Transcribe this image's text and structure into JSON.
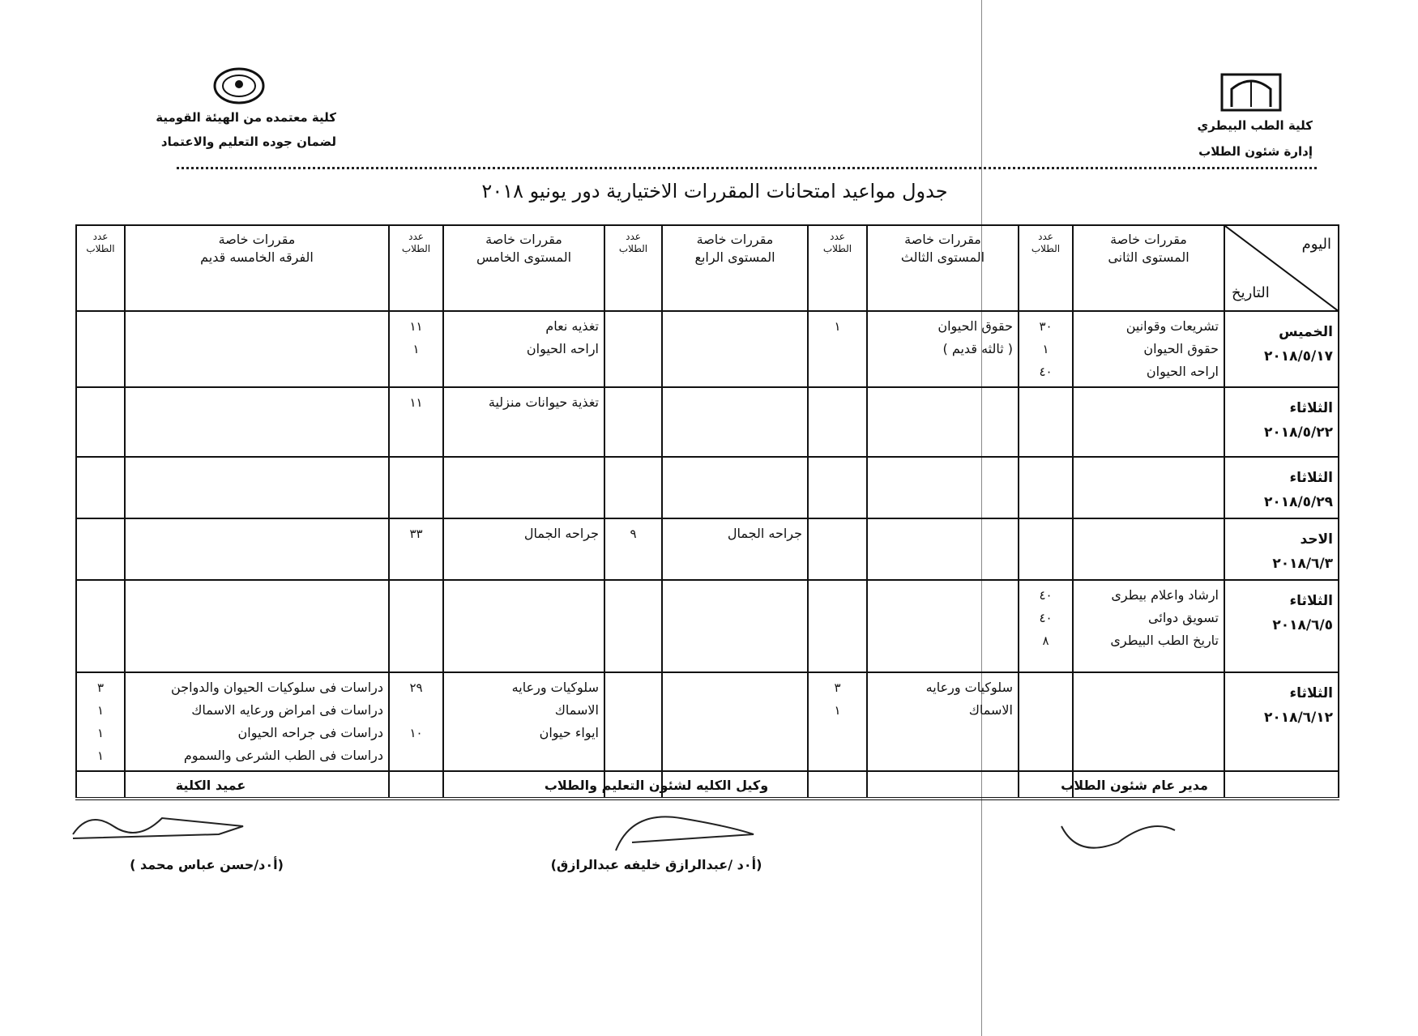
{
  "header": {
    "right_lines": [
      "كلية الطب البيطري",
      "إدارة شئون الطلاب"
    ],
    "left_lines": [
      "كلية معتمده من الهيئة القومية",
      "لضمان جوده التعليم والاعتماد"
    ]
  },
  "title": "جدول مواعيد امتحانات المقررات الاختيارية دور يونيو ٢٠١٨",
  "table": {
    "corner": {
      "day_label": "اليوم",
      "date_label": "التاريخ"
    },
    "columns": [
      [
        "مقررات خاصة",
        "المستوى الثانى"
      ],
      [
        "عدد",
        "الطلاب"
      ],
      [
        "مقررات خاصة",
        "المستوى الثالث"
      ],
      [
        "عدد",
        "الطلاب"
      ],
      [
        "مقررات خاصة",
        "المستوى الرابع"
      ],
      [
        "عدد",
        "الطلاب"
      ],
      [
        "مقررات خاصة",
        "المستوى الخامس"
      ],
      [
        "عدد",
        "الطلاب"
      ],
      [
        "مقررات خاصة",
        "الفرقه الخامسه قديم"
      ],
      [
        "عدد",
        "الطلاب"
      ]
    ],
    "rows": [
      {
        "day": "الخميس",
        "date": "٢٠١٨/٥/١٧",
        "cells": [
          [
            "تشريعات وقوانين",
            "حقوق الحيوان",
            "اراحه الحيوان"
          ],
          [
            "٣٠",
            "١",
            "٤٠"
          ],
          [
            "حقوق الحيوان",
            "( ثالثه قديم )"
          ],
          [
            "١"
          ],
          [],
          [],
          [
            "تغذيه نعام",
            "اراحه الحيوان"
          ],
          [
            "١١",
            "١"
          ],
          [],
          []
        ]
      },
      {
        "day": "الثلاثاء",
        "date": "٢٠١٨/٥/٢٢",
        "cells": [
          [],
          [],
          [],
          [],
          [],
          [],
          [
            "تغذية حيوانات منزلية"
          ],
          [
            "١١"
          ],
          [],
          []
        ]
      },
      {
        "day": "الثلاثاء",
        "date": "٢٠١٨/٥/٢٩",
        "cells": [
          [],
          [],
          [],
          [],
          [],
          [],
          [],
          [],
          [],
          []
        ]
      },
      {
        "day": "الاحد",
        "date": "٢٠١٨/٦/٣",
        "cells": [
          [],
          [],
          [],
          [],
          [
            "جراحه الجمال"
          ],
          [
            "٩"
          ],
          [
            "جراحه الجمال"
          ],
          [
            "٣٣"
          ],
          [],
          []
        ]
      },
      {
        "day": "الثلاثاء",
        "date": "٢٠١٨/٦/٥",
        "cells": [
          [
            "ارشاد واعلام بيطرى",
            "تسويق دوائى",
            "تاريخ الطب البيطرى"
          ],
          [
            "٤٠",
            "٤٠",
            "٨"
          ],
          [],
          [],
          [],
          [],
          [],
          [],
          [],
          []
        ]
      },
      {
        "day": "الثلاثاء",
        "date": "٢٠١٨/٦/١٢",
        "cells": [
          [],
          [],
          [
            "سلوكيات ورعايه",
            "الاسماك"
          ],
          [
            "٣",
            "١"
          ],
          [],
          [],
          [
            "سلوكيات ورعايه",
            "الاسماك",
            "ايواء حيوان"
          ],
          [
            "٢٩",
            null,
            "١٠"
          ],
          [
            "دراسات فى سلوكيات الحيوان والدواجن",
            "دراسات فى امراض ورعايه الاسماك",
            "دراسات فى جراحه الحيوان",
            "دراسات فى الطب الشرعى والسموم"
          ],
          [
            "٣",
            "١",
            "١",
            "١"
          ]
        ]
      }
    ]
  },
  "signatures": [
    {
      "title": "مدير عام شئون الطلاب"
    },
    {
      "title": "وكيل الكليه لشئون التعليم والطلاب",
      "name": "(أ٠د /عبدالرازق خليفه عبدالرازق)"
    },
    {
      "title": "عميد الكلية",
      "name": "(أ٠د/حسن عباس محمد )"
    }
  ]
}
